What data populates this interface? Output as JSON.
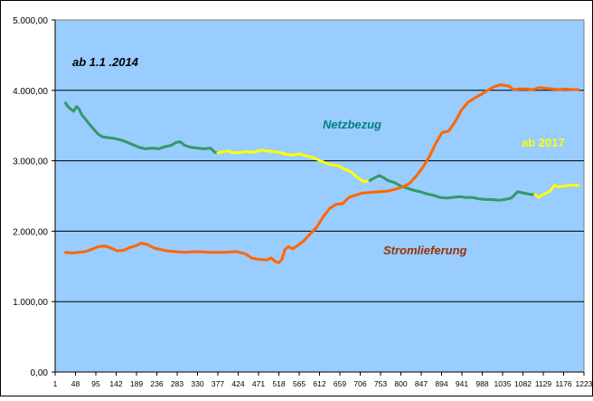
{
  "chart_data": {
    "type": "line",
    "x_ticks": [
      "1",
      "48",
      "95",
      "142",
      "189",
      "236",
      "283",
      "330",
      "377",
      "424",
      "471",
      "518",
      "565",
      "612",
      "659",
      "706",
      "753",
      "800",
      "847",
      "894",
      "941",
      "988",
      "1035",
      "1082",
      "1129",
      "1176",
      "1223"
    ],
    "y_ticks": [
      "0,00",
      "1.000,00",
      "2.000,00",
      "3.000,00",
      "4.000,00",
      "5.000,00"
    ],
    "xlim": [
      1,
      1223
    ],
    "ylim": [
      0,
      5000
    ],
    "grid": "horizontal",
    "background_color": "#99ccff",
    "annotations": {
      "period": "ab 1.1 .2014",
      "netzbezug": "Netzbezug",
      "ab2017": "ab 2017",
      "stromlieferung": "Stromlieferung"
    },
    "annotation_colors": {
      "period": "#000000",
      "netzbezug": "#008080",
      "ab2017": "#ffff00",
      "stromlieferung": "#993300"
    },
    "series": [
      {
        "name": "Netzbezug",
        "segments": [
          {
            "color": "#339966",
            "points": [
              [
                25,
                3820
              ],
              [
                32,
                3760
              ],
              [
                38,
                3730
              ],
              [
                44,
                3700
              ],
              [
                50,
                3770
              ],
              [
                56,
                3740
              ],
              [
                62,
                3660
              ],
              [
                70,
                3600
              ],
              [
                80,
                3520
              ],
              [
                90,
                3450
              ],
              [
                100,
                3380
              ],
              [
                110,
                3340
              ],
              [
                120,
                3330
              ],
              [
                135,
                3320
              ],
              [
                150,
                3300
              ],
              [
                165,
                3270
              ],
              [
                180,
                3230
              ],
              [
                195,
                3190
              ],
              [
                210,
                3170
              ],
              [
                225,
                3180
              ],
              [
                240,
                3170
              ],
              [
                255,
                3200
              ],
              [
                270,
                3220
              ],
              [
                280,
                3260
              ],
              [
                290,
                3270
              ],
              [
                300,
                3220
              ],
              [
                315,
                3190
              ],
              [
                330,
                3180
              ],
              [
                345,
                3170
              ],
              [
                360,
                3180
              ],
              [
                370,
                3120
              ],
              [
                377,
                3110
              ]
            ]
          },
          {
            "color": "#ffff00",
            "points": [
              [
                377,
                3110
              ],
              [
                390,
                3130
              ],
              [
                400,
                3140
              ],
              [
                415,
                3110
              ],
              [
                430,
                3120
              ],
              [
                445,
                3130
              ],
              [
                460,
                3120
              ],
              [
                475,
                3150
              ],
              [
                490,
                3140
              ],
              [
                505,
                3130
              ],
              [
                520,
                3120
              ],
              [
                535,
                3090
              ],
              [
                550,
                3080
              ],
              [
                565,
                3100
              ],
              [
                580,
                3070
              ],
              [
                595,
                3050
              ],
              [
                610,
                3010
              ],
              [
                625,
                2970
              ],
              [
                640,
                2940
              ],
              [
                655,
                2930
              ],
              [
                670,
                2880
              ],
              [
                685,
                2840
              ],
              [
                700,
                2760
              ],
              [
                715,
                2700
              ],
              [
                728,
                2720
              ]
            ]
          },
          {
            "color": "#339966",
            "points": [
              [
                728,
                2720
              ],
              [
                740,
                2760
              ],
              [
                750,
                2790
              ],
              [
                760,
                2760
              ],
              [
                770,
                2720
              ],
              [
                785,
                2690
              ],
              [
                800,
                2640
              ],
              [
                815,
                2610
              ],
              [
                830,
                2580
              ],
              [
                845,
                2560
              ],
              [
                860,
                2530
              ],
              [
                875,
                2510
              ],
              [
                890,
                2480
              ],
              [
                905,
                2470
              ],
              [
                920,
                2480
              ],
              [
                935,
                2490
              ],
              [
                950,
                2480
              ],
              [
                965,
                2480
              ],
              [
                980,
                2460
              ],
              [
                995,
                2450
              ],
              [
                1010,
                2450
              ],
              [
                1025,
                2440
              ],
              [
                1040,
                2450
              ],
              [
                1055,
                2470
              ],
              [
                1070,
                2560
              ],
              [
                1085,
                2540
              ],
              [
                1100,
                2520
              ],
              [
                1110,
                2520
              ]
            ]
          },
          {
            "color": "#ffff00",
            "points": [
              [
                1110,
                2520
              ],
              [
                1118,
                2480
              ],
              [
                1125,
                2510
              ],
              [
                1135,
                2540
              ],
              [
                1145,
                2570
              ],
              [
                1155,
                2650
              ],
              [
                1165,
                2630
              ],
              [
                1175,
                2640
              ],
              [
                1190,
                2650
              ],
              [
                1210,
                2650
              ]
            ]
          }
        ]
      },
      {
        "name": "Stromlieferung",
        "segments": [
          {
            "color": "#ff6600",
            "points": [
              [
                25,
                1700
              ],
              [
                40,
                1690
              ],
              [
                55,
                1700
              ],
              [
                70,
                1710
              ],
              [
                85,
                1740
              ],
              [
                100,
                1780
              ],
              [
                115,
                1790
              ],
              [
                130,
                1760
              ],
              [
                145,
                1720
              ],
              [
                160,
                1730
              ],
              [
                175,
                1770
              ],
              [
                190,
                1800
              ],
              [
                200,
                1830
              ],
              [
                215,
                1810
              ],
              [
                230,
                1760
              ],
              [
                245,
                1740
              ],
              [
                260,
                1720
              ],
              [
                280,
                1710
              ],
              [
                300,
                1700
              ],
              [
                330,
                1710
              ],
              [
                360,
                1700
              ],
              [
                390,
                1700
              ],
              [
                420,
                1710
              ],
              [
                440,
                1680
              ],
              [
                455,
                1620
              ],
              [
                470,
                1600
              ],
              [
                490,
                1590
              ],
              [
                500,
                1620
              ],
              [
                510,
                1570
              ],
              [
                518,
                1550
              ],
              [
                525,
                1600
              ],
              [
                532,
                1740
              ],
              [
                540,
                1780
              ],
              [
                550,
                1750
              ],
              [
                560,
                1790
              ],
              [
                575,
                1860
              ],
              [
                590,
                1960
              ],
              [
                605,
                2050
              ],
              [
                620,
                2200
              ],
              [
                635,
                2320
              ],
              [
                650,
                2380
              ],
              [
                665,
                2390
              ],
              [
                680,
                2480
              ],
              [
                695,
                2510
              ],
              [
                710,
                2540
              ],
              [
                730,
                2550
              ],
              [
                750,
                2560
              ],
              [
                770,
                2570
              ],
              [
                790,
                2600
              ],
              [
                805,
                2630
              ],
              [
                820,
                2680
              ],
              [
                835,
                2780
              ],
              [
                850,
                2900
              ],
              [
                865,
                3050
              ],
              [
                880,
                3240
              ],
              [
                895,
                3400
              ],
              [
                910,
                3420
              ],
              [
                925,
                3550
              ],
              [
                940,
                3720
              ],
              [
                955,
                3830
              ],
              [
                970,
                3890
              ],
              [
                985,
                3940
              ],
              [
                1000,
                4000
              ],
              [
                1015,
                4050
              ],
              [
                1030,
                4080
              ],
              [
                1040,
                4070
              ],
              [
                1050,
                4060
              ],
              [
                1060,
                4010
              ],
              [
                1075,
                4020
              ],
              [
                1090,
                4020
              ],
              [
                1105,
                4010
              ],
              [
                1120,
                4040
              ],
              [
                1135,
                4030
              ],
              [
                1150,
                4020
              ],
              [
                1165,
                4010
              ],
              [
                1180,
                4020
              ],
              [
                1195,
                4010
              ],
              [
                1210,
                4010
              ]
            ]
          }
        ]
      }
    ]
  }
}
